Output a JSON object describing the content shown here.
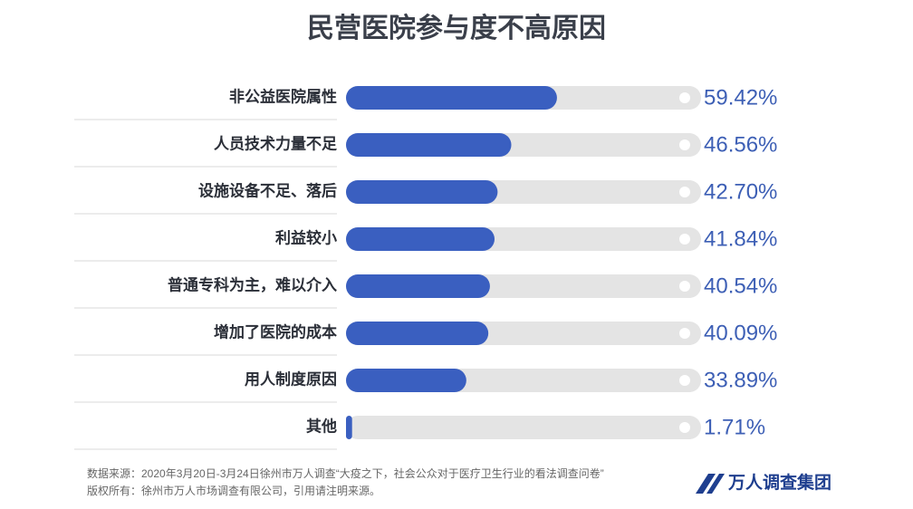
{
  "chart_data": {
    "type": "bar",
    "orientation": "horizontal",
    "title": "民营医院参与度不高原因",
    "categories": [
      "非公益医院属性",
      "人员技术力量不足",
      "设施设备不足、落后",
      "利益较小",
      "普通专科为主，难以介入",
      "增加了医院的成本",
      "用人制度原因",
      "其他"
    ],
    "values": [
      59.42,
      46.56,
      42.7,
      41.84,
      40.54,
      40.09,
      33.89,
      1.71
    ],
    "value_labels": [
      "59.42%",
      "46.56%",
      "42.70%",
      "41.84%",
      "40.54%",
      "40.09%",
      "33.89%",
      "1.71%"
    ],
    "color": "#3a5fc0",
    "track_color": "#e4e4e4",
    "xlim": [
      0,
      100
    ],
    "source": [
      "数据来源：2020年3月20日-3月24日徐州市万人调查“大疫之下，社会公众对于医疗卫生行业的看法调查问卷”",
      "版权所有：徐州市万人市场调查有限公司，引用请注明来源。"
    ],
    "logo": "万人调查集团"
  }
}
